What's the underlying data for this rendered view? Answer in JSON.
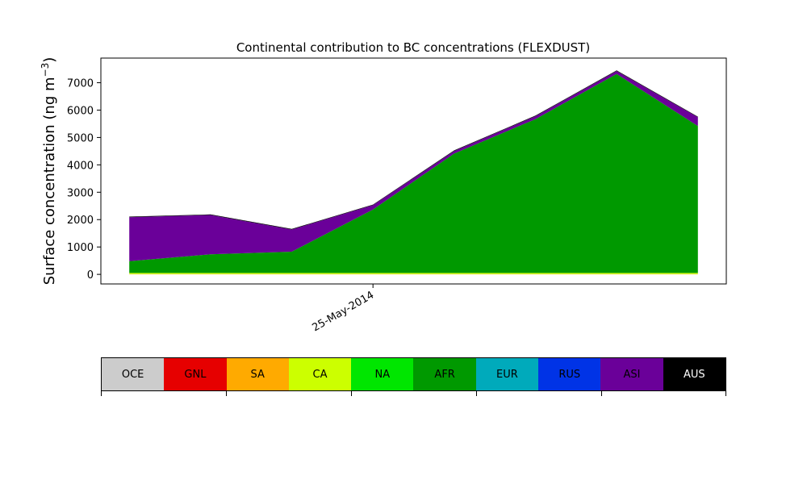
{
  "chart_data": {
    "type": "area",
    "title": "Continental contribution to BC concentrations (FLEXDUST)",
    "ylabel_main": "Surface concentration (ng m",
    "ylabel_sup": "−3",
    "ylabel_tail": ")",
    "xlabel": "",
    "x": [
      0,
      1,
      2,
      3,
      4,
      5,
      6,
      7
    ],
    "x_tick_positions": [
      3
    ],
    "x_tick_labels": [
      "25-May-2014"
    ],
    "ylim": [
      -350,
      7900
    ],
    "xlim": [
      -0.35,
      7.35
    ],
    "y_ticks": [
      0,
      1000,
      2000,
      3000,
      4000,
      5000,
      6000,
      7000
    ],
    "grid": false,
    "series": [
      {
        "name": "OCE",
        "color": "#cccccc",
        "values": [
          0,
          0,
          0,
          0,
          0,
          0,
          0,
          0
        ]
      },
      {
        "name": "GNL",
        "color": "#e60000",
        "values": [
          0,
          0,
          0,
          0,
          0,
          0,
          0,
          0
        ]
      },
      {
        "name": "SA",
        "color": "#ffaa00",
        "values": [
          10,
          10,
          10,
          10,
          10,
          10,
          10,
          10
        ]
      },
      {
        "name": "CA",
        "color": "#ccff00",
        "values": [
          40,
          40,
          40,
          40,
          40,
          40,
          40,
          40
        ]
      },
      {
        "name": "NA",
        "color": "#00e600",
        "values": [
          0,
          0,
          0,
          0,
          0,
          0,
          0,
          0
        ]
      },
      {
        "name": "AFR",
        "color": "#009900",
        "values": [
          430,
          680,
          780,
          2320,
          4360,
          5620,
          7270,
          5370
        ]
      },
      {
        "name": "EUR",
        "color": "#00aabb",
        "values": [
          0,
          0,
          0,
          0,
          0,
          0,
          0,
          0
        ]
      },
      {
        "name": "RUS",
        "color": "#0033e6",
        "values": [
          0,
          0,
          0,
          0,
          0,
          0,
          0,
          0
        ]
      },
      {
        "name": "ASI",
        "color": "#6a0099",
        "values": [
          1610,
          1440,
          810,
          160,
          100,
          110,
          110,
          320
        ]
      },
      {
        "name": "AUS",
        "color": "#000000",
        "values": [
          20,
          20,
          20,
          20,
          20,
          20,
          20,
          20
        ]
      }
    ]
  },
  "legend": {
    "items": [
      {
        "label": "OCE",
        "color": "#cccccc"
      },
      {
        "label": "GNL",
        "color": "#e60000"
      },
      {
        "label": "SA",
        "color": "#ffaa00"
      },
      {
        "label": "CA",
        "color": "#ccff00"
      },
      {
        "label": "NA",
        "color": "#00e600"
      },
      {
        "label": "AFR",
        "color": "#009900"
      },
      {
        "label": "EUR",
        "color": "#00aabb"
      },
      {
        "label": "RUS",
        "color": "#0033e6"
      },
      {
        "label": "ASI",
        "color": "#6a0099"
      },
      {
        "label": "AUS",
        "color": "#000000",
        "text_color": "#ffffff"
      }
    ]
  }
}
